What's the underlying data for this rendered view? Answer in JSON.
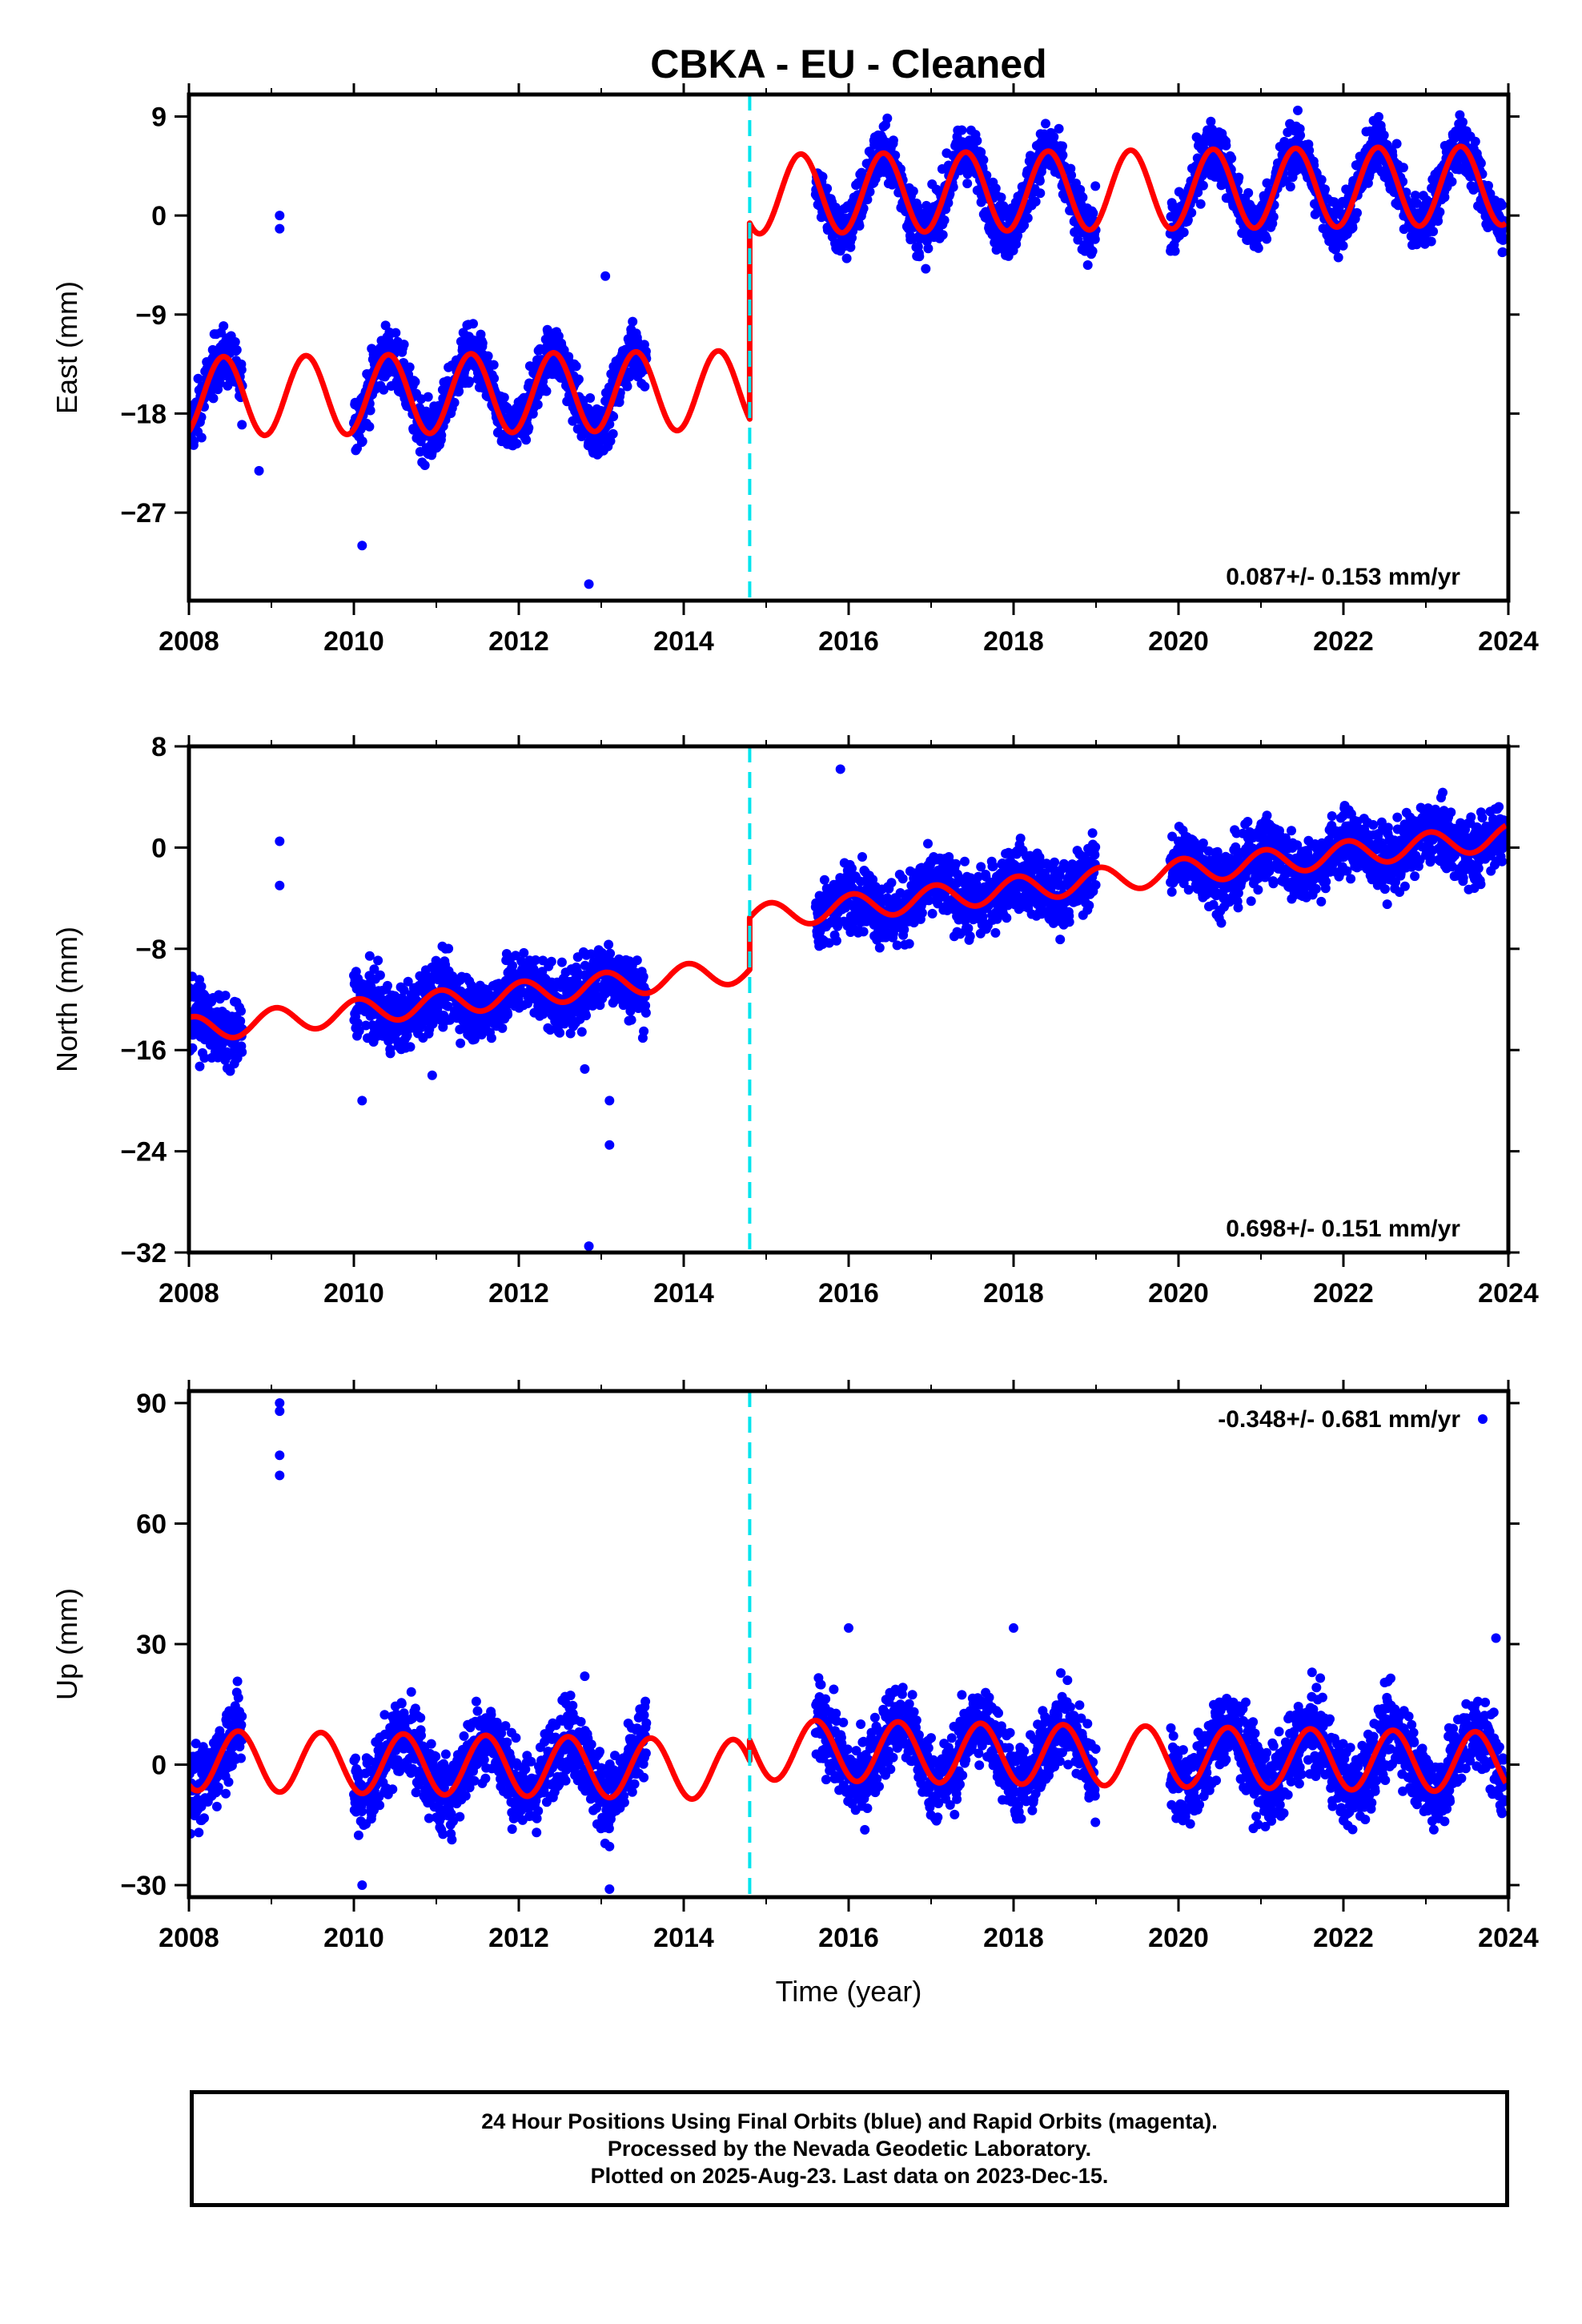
{
  "title": "CBKA  - EU - Cleaned",
  "footer": {
    "line1": "24 Hour Positions Using Final Orbits (blue) and Rapid Orbits (magenta).",
    "line2": "Processed by the Nevada Geodetic Laboratory.",
    "line3": "Plotted on 2025-Aug-23. Last data on 2023-Dec-15."
  },
  "colors": {
    "data": "#0000ff",
    "model": "#ff0000",
    "offset": "#00e5ee",
    "frame": "#000000"
  },
  "chart_data": [
    {
      "type": "scatter",
      "panel": "east",
      "ylabel": "East (mm)",
      "xlabel": "",
      "xlim": [
        2008,
        2024
      ],
      "ylim": [
        -35,
        11
      ],
      "xticks": [
        2008,
        2010,
        2012,
        2014,
        2016,
        2018,
        2020,
        2022,
        2024
      ],
      "yticks": [
        9,
        0,
        -9,
        -18,
        -27
      ],
      "annotation": "0.087+/- 0.153 mm/yr",
      "annotation_position": "bottom-right",
      "offset_epoch": 2014.8,
      "model": {
        "amplitude": 3.6,
        "phase_peak": 0.42,
        "before": {
          "level": -16.2,
          "rate": 0.087
        },
        "after": {
          "level": 2.3,
          "rate": 0.087
        }
      },
      "data_coverage": [
        [
          2008.0,
          2008.65
        ],
        [
          2010.0,
          2013.55
        ],
        [
          2015.6,
          2019.0
        ],
        [
          2019.9,
          2023.95
        ]
      ],
      "noise_mm": 1.3,
      "outliers": [
        [
          2009.1,
          0.0
        ],
        [
          2009.1,
          -1.2
        ],
        [
          2010.1,
          -30.0
        ],
        [
          2012.85,
          -33.5
        ],
        [
          2013.05,
          -5.5
        ],
        [
          2008.85,
          -23.2
        ]
      ]
    },
    {
      "type": "scatter",
      "panel": "north",
      "ylabel": "North (mm)",
      "xlabel": "",
      "xlim": [
        2008,
        2024
      ],
      "ylim": [
        -32,
        8
      ],
      "xticks": [
        2008,
        2010,
        2012,
        2014,
        2016,
        2018,
        2020,
        2022,
        2024
      ],
      "yticks": [
        8,
        0,
        -8,
        -16,
        -24,
        -32
      ],
      "annotation": "0.698+/- 0.151 mm/yr",
      "annotation_position": "bottom-right",
      "offset_epoch": 2014.8,
      "model": {
        "amplitude": 1.0,
        "phase_peak": 0.05,
        "before": {
          "level": -12.3,
          "rate": 0.698
        },
        "after": {
          "level": -2.6,
          "rate": 0.698
        }
      },
      "data_coverage": [
        [
          2008.0,
          2008.65
        ],
        [
          2010.0,
          2013.55
        ],
        [
          2015.6,
          2019.0
        ],
        [
          2019.9,
          2023.95
        ]
      ],
      "noise_mm": 1.3,
      "outliers": [
        [
          2009.1,
          0.5
        ],
        [
          2009.1,
          -3.0
        ],
        [
          2010.1,
          -20.0
        ],
        [
          2010.95,
          -18.0
        ],
        [
          2012.8,
          -17.5
        ],
        [
          2012.85,
          -31.5
        ],
        [
          2013.1,
          -20.0
        ],
        [
          2013.1,
          -23.5
        ],
        [
          2015.9,
          6.2
        ]
      ]
    },
    {
      "type": "scatter",
      "panel": "up",
      "ylabel": "Up (mm)",
      "xlabel": "Time (year)",
      "xlim": [
        2008,
        2024
      ],
      "ylim": [
        -33,
        93
      ],
      "xticks": [
        2008,
        2010,
        2012,
        2014,
        2016,
        2018,
        2020,
        2022,
        2024
      ],
      "yticks": [
        90,
        60,
        30,
        0,
        -30
      ],
      "annotation": "-0.348+/- 0.681 mm/yr",
      "annotation_position": "top-right",
      "offset_epoch": 2014.8,
      "model": {
        "amplitude": 7.5,
        "phase_peak": 0.6,
        "before": {
          "level": 0.0,
          "rate": -0.348
        },
        "after": {
          "level": 2.3,
          "rate": -0.348
        }
      },
      "data_coverage": [
        [
          2008.0,
          2008.65
        ],
        [
          2010.0,
          2013.55
        ],
        [
          2015.6,
          2019.0
        ],
        [
          2019.9,
          2023.95
        ]
      ],
      "noise_mm": 5.0,
      "outliers": [
        [
          2009.1,
          90.0
        ],
        [
          2009.1,
          88.0
        ],
        [
          2009.1,
          77.0
        ],
        [
          2009.1,
          72.0
        ],
        [
          2016.0,
          34.0
        ],
        [
          2018.0,
          34.0
        ],
        [
          2012.8,
          22.0
        ],
        [
          2023.85,
          31.5
        ],
        [
          2010.1,
          -30.0
        ],
        [
          2013.1,
          -31.0
        ]
      ]
    }
  ]
}
